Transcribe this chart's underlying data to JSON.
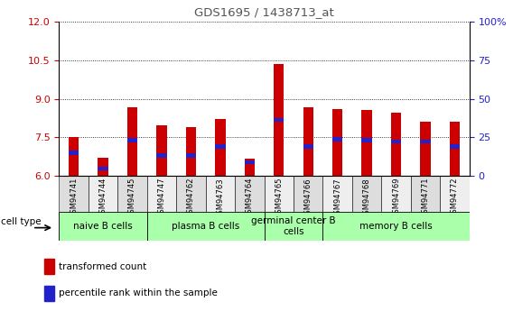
{
  "title": "GDS1695 / 1438713_at",
  "samples": [
    "GSM94741",
    "GSM94744",
    "GSM94745",
    "GSM94747",
    "GSM94762",
    "GSM94763",
    "GSM94764",
    "GSM94765",
    "GSM94766",
    "GSM94767",
    "GSM94768",
    "GSM94769",
    "GSM94771",
    "GSM94772"
  ],
  "transformed_count": [
    7.5,
    6.7,
    8.65,
    7.95,
    7.9,
    8.2,
    6.65,
    10.35,
    8.65,
    8.6,
    8.55,
    8.45,
    8.1,
    8.1
  ],
  "percentile_y": [
    6.82,
    6.2,
    7.3,
    6.7,
    6.7,
    7.05,
    6.45,
    8.1,
    7.05,
    7.35,
    7.3,
    7.25,
    7.25,
    7.05
  ],
  "percentile_height": [
    0.16,
    0.16,
    0.16,
    0.16,
    0.16,
    0.16,
    0.16,
    0.16,
    0.16,
    0.16,
    0.16,
    0.16,
    0.16,
    0.16
  ],
  "ylim": [
    6,
    12
  ],
  "yticks_left": [
    6,
    7.5,
    9,
    10.5,
    12
  ],
  "yticks_right": [
    0,
    25,
    50,
    75,
    100
  ],
  "bar_color": "#cc0000",
  "percentile_color": "#2222cc",
  "bar_bottom": 6,
  "cell_groups": [
    {
      "label": "naive B cells",
      "start": 0,
      "end": 3
    },
    {
      "label": "plasma B cells",
      "start": 3,
      "end": 7
    },
    {
      "label": "germinal center B\ncells",
      "start": 7,
      "end": 9
    },
    {
      "label": "memory B cells",
      "start": 9,
      "end": 14
    }
  ],
  "cell_group_color": "#aaffaa",
  "cell_type_label": "cell type",
  "legend_items": [
    {
      "label": "transformed count",
      "color": "#cc0000"
    },
    {
      "label": "percentile rank within the sample",
      "color": "#2222cc"
    }
  ],
  "left_tick_color": "#cc0000",
  "right_tick_color": "#2222cc",
  "title_color": "#555555",
  "bar_width": 0.35
}
